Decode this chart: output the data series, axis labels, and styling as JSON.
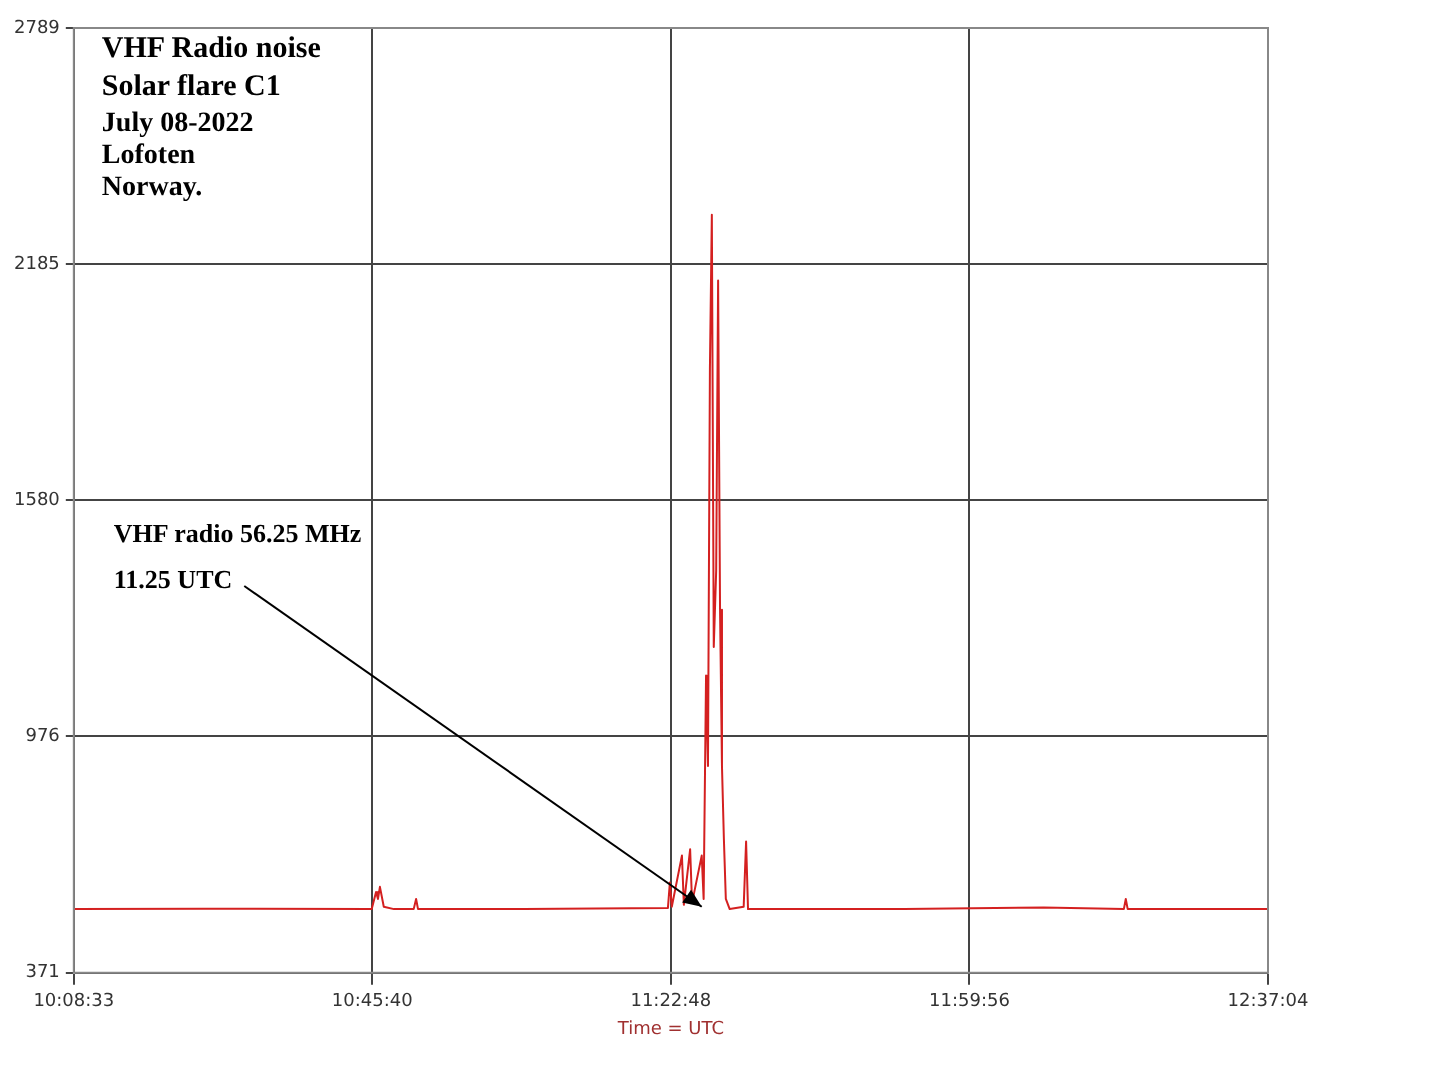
{
  "chart_data": {
    "type": "line",
    "title": "VHF Radio noise",
    "subtitle": "Solar flare C1",
    "annotations": [
      "July 08-2022",
      "Lofoten",
      "Norway.",
      "VHF radio 56.25 MHz",
      {
        "text": "11.25 UTC",
        "x": 11.444,
        "y": 540
      }
    ],
    "xlabel": "Time = UTC",
    "xlim": [
      10.1425,
      12.6178
    ],
    "xticks": [
      {
        "value": 10.1425,
        "label": "10:08:33"
      },
      {
        "value": 10.7611,
        "label": "10:45:40"
      },
      {
        "value": 11.38,
        "label": "11:22:48"
      },
      {
        "value": 11.9989,
        "label": "11:59:56"
      },
      {
        "value": 12.6178,
        "label": "12:37:04"
      }
    ],
    "ylim": [
      371,
      2789
    ],
    "yticks": [
      371,
      976,
      1580,
      2185,
      2789
    ],
    "grid": true,
    "legend": false,
    "marker": "none",
    "line_style": "solid",
    "series": [
      {
        "color": "#d42020",
        "x": [
          10.1425,
          10.412,
          10.76,
          10.769,
          10.773,
          10.777,
          10.785,
          10.806,
          10.847,
          10.852,
          10.856,
          11.075,
          11.374,
          11.378,
          11.382,
          11.403,
          11.407,
          11.42,
          11.424,
          11.444,
          11.448,
          11.453,
          11.457,
          11.461,
          11.465,
          11.469,
          11.474,
          11.478,
          11.482,
          11.486,
          11.49,
          11.494,
          11.502,
          11.531,
          11.536,
          11.54,
          11.863,
          12.153,
          12.319,
          12.323,
          12.327,
          12.6178
        ],
        "values": [
          534,
          535,
          534,
          578,
          560,
          591,
          540,
          534,
          534,
          560,
          534,
          534,
          537,
          602,
          540,
          671,
          545,
          687,
          550,
          671,
          560,
          1132,
          900,
          1918,
          2311,
          1205,
          1400,
          2143,
          1300,
          900,
          712,
          560,
          534,
          540,
          707,
          534,
          534,
          538,
          534,
          560,
          534,
          534
        ]
      }
    ]
  }
}
